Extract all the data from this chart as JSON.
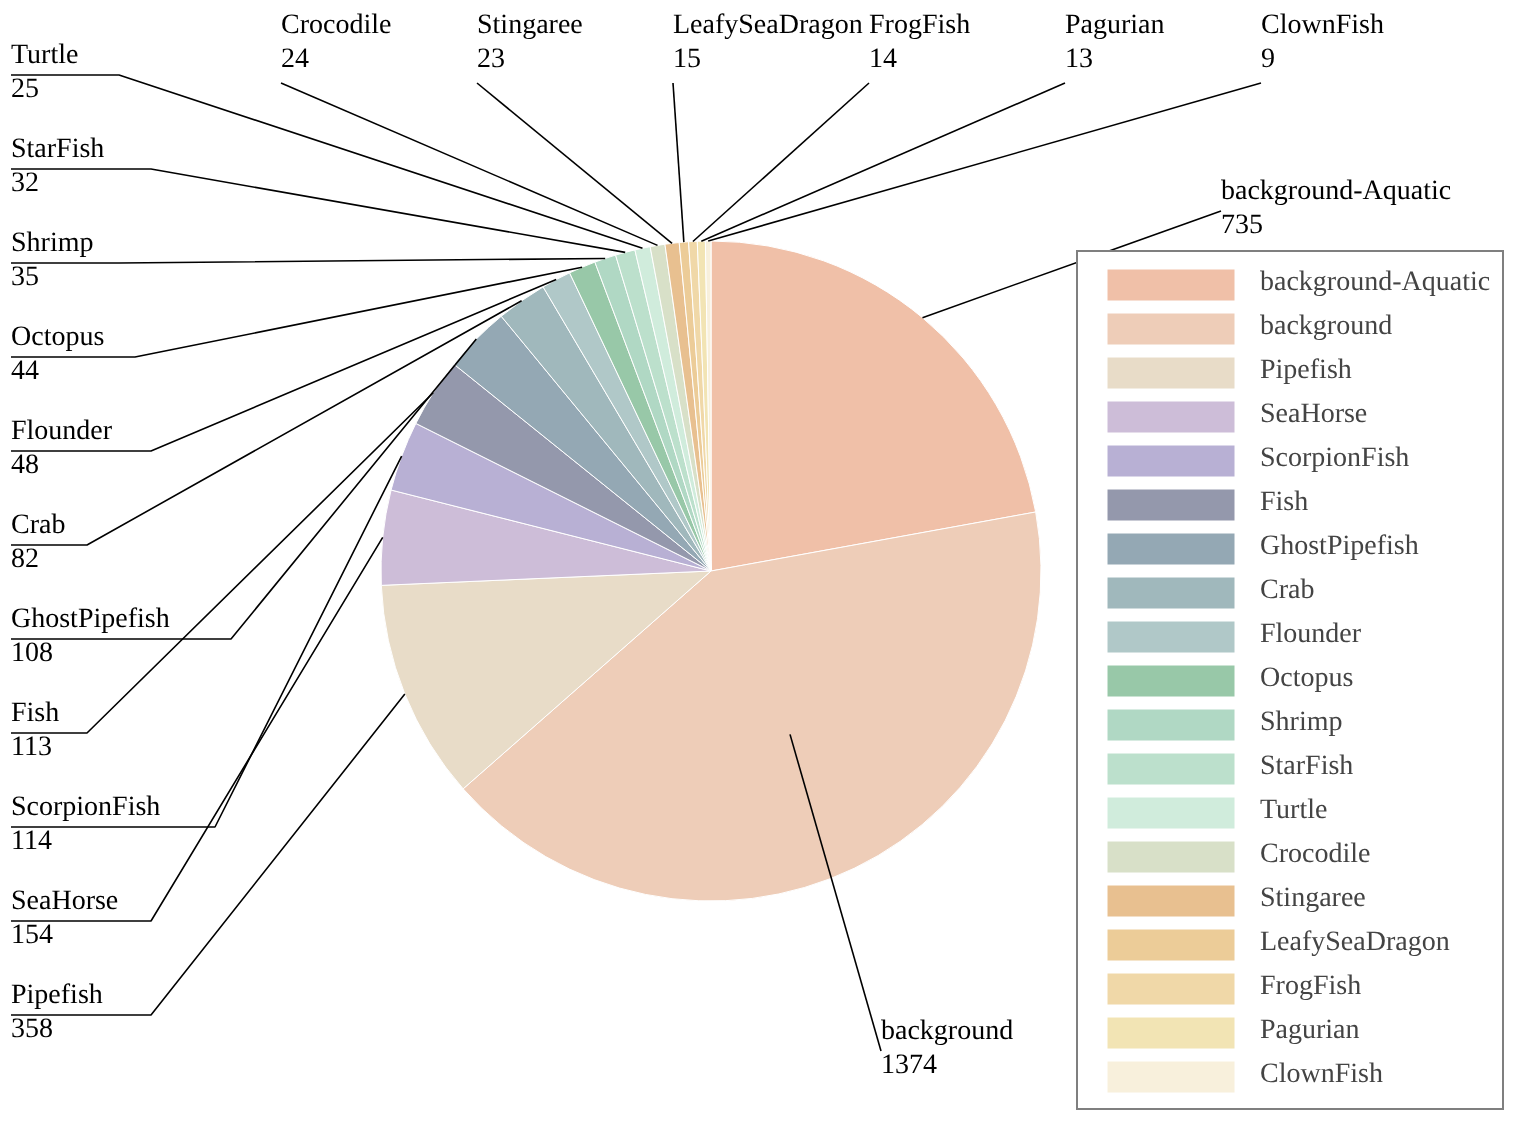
{
  "chart_data": {
    "type": "pie",
    "legend": "right",
    "data_labels": true,
    "categories": [
      "background-Aquatic",
      "background",
      "Pipefish",
      "SeaHorse",
      "ScorpionFish",
      "Fish",
      "GhostPipefish",
      "Crab",
      "Flounder",
      "Octopus",
      "Shrimp",
      "StarFish",
      "Turtle",
      "Crocodile",
      "Stingaree",
      "LeafySeaDragon",
      "FrogFish",
      "Pagurian",
      "ClownFish"
    ],
    "values": [
      735,
      1374,
      358,
      154,
      114,
      113,
      108,
      82,
      48,
      44,
      35,
      32,
      25,
      24,
      23,
      15,
      14,
      13,
      9
    ],
    "colors": [
      "#f0c0a8",
      "#eecdb8",
      "#e8dcc8",
      "#cdbdd8",
      "#b8b0d4",
      "#9498ac",
      "#94a8b4",
      "#a0b8bc",
      "#b0c8c8",
      "#98c8a8",
      "#b0d8c4",
      "#bce0cc",
      "#d0ecdc",
      "#d8e0c8",
      "#e8c090",
      "#eccc98",
      "#f0d8a8",
      "#f2e4b4",
      "#f8f0dc"
    ]
  }
}
